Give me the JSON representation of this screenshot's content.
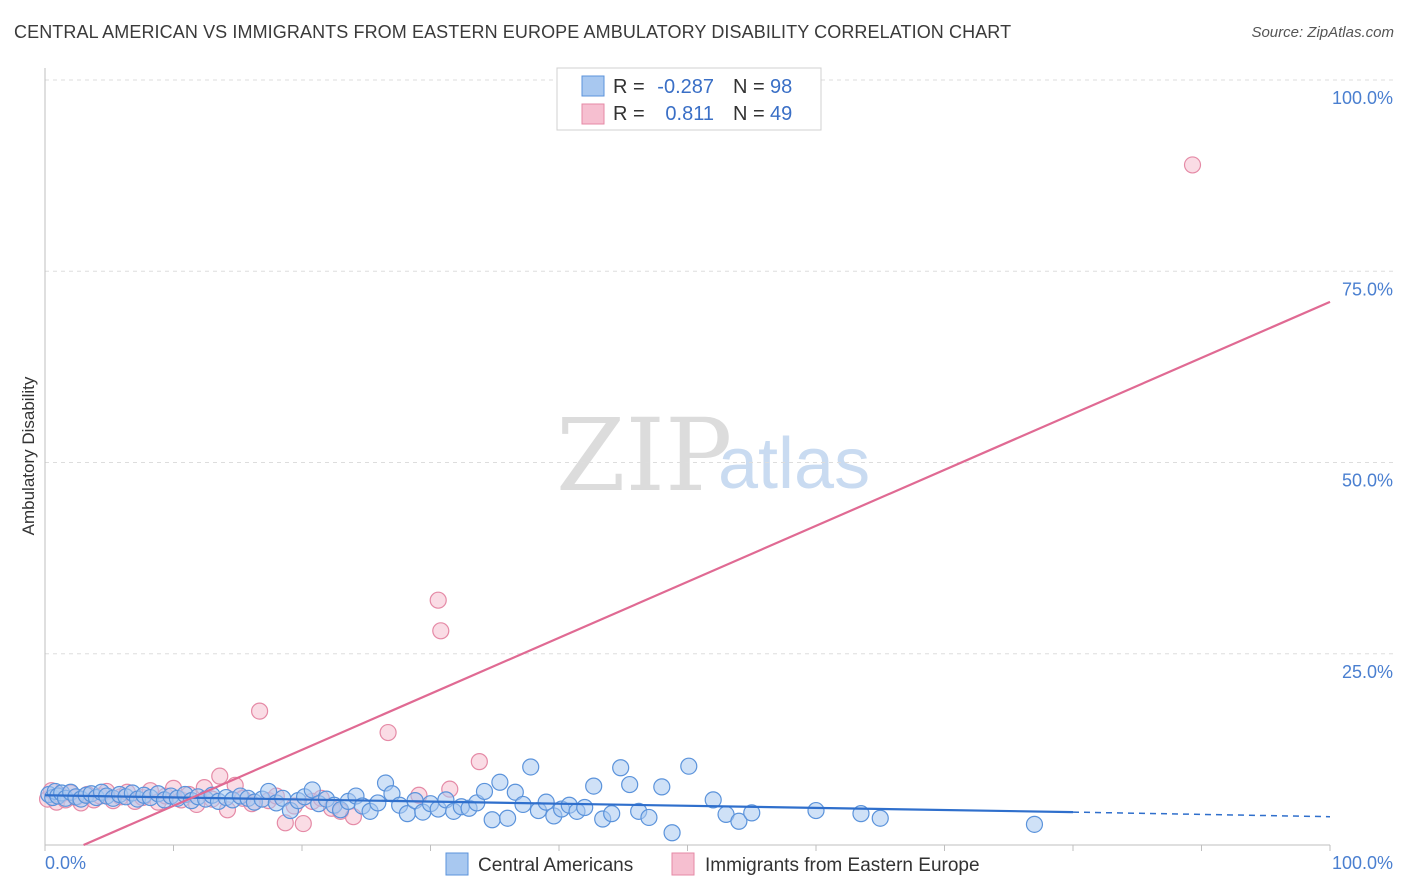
{
  "title": "CENTRAL AMERICAN VS IMMIGRANTS FROM EASTERN EUROPE AMBULATORY DISABILITY CORRELATION CHART",
  "source": "Source: ZipAtlas.com",
  "watermark": {
    "zip": "ZIP",
    "atlas": "atlas"
  },
  "colors": {
    "blue_fill": "#a8c8f0",
    "blue_stroke": "#5b93db",
    "blue_line": "#2f6fcc",
    "pink_fill": "#f6bfd0",
    "pink_stroke": "#e58aa6",
    "pink_line": "#e06a93",
    "tick": "#4a7fd0",
    "grid": "#dddddd"
  },
  "legend": {
    "rows": [
      {
        "r_label": "R =",
        "r_value": "-0.287",
        "n_label": "N =",
        "n_value": "98",
        "series": "blue"
      },
      {
        "r_label": "R =",
        "r_value": "0.811",
        "n_label": "N =",
        "n_value": "49",
        "series": "pink"
      }
    ]
  },
  "bottom_legend": [
    {
      "label": "Central Americans",
      "series": "blue"
    },
    {
      "label": "Immigrants from Eastern Europe",
      "series": "pink"
    }
  ],
  "chart_data": {
    "type": "scatter",
    "title": "CENTRAL AMERICAN VS IMMIGRANTS FROM EASTERN EUROPE AMBULATORY DISABILITY CORRELATION CHART",
    "xlabel": "",
    "ylabel": "Ambulatory Disability",
    "xlim": [
      0,
      100
    ],
    "ylim": [
      0,
      100
    ],
    "x_tick_labels": [
      "0.0%",
      "100.0%"
    ],
    "y_ticks": [
      25,
      50,
      75,
      100
    ],
    "y_tick_labels": [
      "25.0%",
      "50.0%",
      "75.0%",
      "100.0%"
    ],
    "grid": true,
    "series": [
      {
        "name": "Central Americans",
        "color": "blue",
        "trend": {
          "x0": 0,
          "y0": 6.5,
          "x1": 80,
          "y1": 4.3,
          "dash_to_x": 100,
          "dash_to_y": 3.7
        },
        "points": [
          [
            0.3,
            6.6
          ],
          [
            0.6,
            6.2
          ],
          [
            0.8,
            7.0
          ],
          [
            1.0,
            6.4
          ],
          [
            1.3,
            6.8
          ],
          [
            1.6,
            6.1
          ],
          [
            2.0,
            6.9
          ],
          [
            2.4,
            6.3
          ],
          [
            2.8,
            6.0
          ],
          [
            3.2,
            6.5
          ],
          [
            3.6,
            6.7
          ],
          [
            4.0,
            6.2
          ],
          [
            4.4,
            6.9
          ],
          [
            4.8,
            6.4
          ],
          [
            5.3,
            6.1
          ],
          [
            5.8,
            6.6
          ],
          [
            6.3,
            6.3
          ],
          [
            6.8,
            6.8
          ],
          [
            7.2,
            6.0
          ],
          [
            7.7,
            6.5
          ],
          [
            8.2,
            6.2
          ],
          [
            8.8,
            6.7
          ],
          [
            9.3,
            5.9
          ],
          [
            9.8,
            6.4
          ],
          [
            10.3,
            6.1
          ],
          [
            10.9,
            6.6
          ],
          [
            11.4,
            5.8
          ],
          [
            11.9,
            6.3
          ],
          [
            12.5,
            6.0
          ],
          [
            13.0,
            6.5
          ],
          [
            13.5,
            5.7
          ],
          [
            14.1,
            6.2
          ],
          [
            14.6,
            5.9
          ],
          [
            15.2,
            6.4
          ],
          [
            15.8,
            6.1
          ],
          [
            16.3,
            5.6
          ],
          [
            16.9,
            6.0
          ],
          [
            17.4,
            7.0
          ],
          [
            18.0,
            5.5
          ],
          [
            18.5,
            6.1
          ],
          [
            19.1,
            4.5
          ],
          [
            19.7,
            5.8
          ],
          [
            20.2,
            6.3
          ],
          [
            20.8,
            7.2
          ],
          [
            21.3,
            5.4
          ],
          [
            21.9,
            6.0
          ],
          [
            22.5,
            5.2
          ],
          [
            23.0,
            4.6
          ],
          [
            23.6,
            5.7
          ],
          [
            24.2,
            6.4
          ],
          [
            24.7,
            5.1
          ],
          [
            25.3,
            4.4
          ],
          [
            25.9,
            5.5
          ],
          [
            26.5,
            8.1
          ],
          [
            27.0,
            6.7
          ],
          [
            27.6,
            5.2
          ],
          [
            28.2,
            4.1
          ],
          [
            28.8,
            5.8
          ],
          [
            29.4,
            4.3
          ],
          [
            30.0,
            5.4
          ],
          [
            30.6,
            4.7
          ],
          [
            31.2,
            5.9
          ],
          [
            31.8,
            4.4
          ],
          [
            32.4,
            5.0
          ],
          [
            33.0,
            4.8
          ],
          [
            33.6,
            5.5
          ],
          [
            34.2,
            7.0
          ],
          [
            34.8,
            3.3
          ],
          [
            35.4,
            8.2
          ],
          [
            36.0,
            3.5
          ],
          [
            36.6,
            6.9
          ],
          [
            37.2,
            5.3
          ],
          [
            37.8,
            10.2
          ],
          [
            38.4,
            4.5
          ],
          [
            39.0,
            5.6
          ],
          [
            39.6,
            3.8
          ],
          [
            40.2,
            4.7
          ],
          [
            40.8,
            5.2
          ],
          [
            41.4,
            4.4
          ],
          [
            42.0,
            4.9
          ],
          [
            42.7,
            7.7
          ],
          [
            43.4,
            3.4
          ],
          [
            44.1,
            4.1
          ],
          [
            44.8,
            10.1
          ],
          [
            45.5,
            7.9
          ],
          [
            46.2,
            4.4
          ],
          [
            47.0,
            3.6
          ],
          [
            48.0,
            7.6
          ],
          [
            48.8,
            1.6
          ],
          [
            50.1,
            10.3
          ],
          [
            52.0,
            5.9
          ],
          [
            53.0,
            4.0
          ],
          [
            54.0,
            3.1
          ],
          [
            55.0,
            4.2
          ],
          [
            60.0,
            4.5
          ],
          [
            63.5,
            4.1
          ],
          [
            65.0,
            3.5
          ],
          [
            77.0,
            2.7
          ]
        ]
      },
      {
        "name": "Immigrants from Eastern Europe",
        "color": "pink",
        "trend": {
          "x0": 3.0,
          "y0": 0,
          "x1": 100,
          "y1": 71.0
        },
        "points": [
          [
            0.2,
            6.0
          ],
          [
            0.5,
            7.1
          ],
          [
            0.9,
            5.6
          ],
          [
            1.2,
            6.5
          ],
          [
            1.6,
            5.9
          ],
          [
            2.0,
            6.8
          ],
          [
            2.4,
            6.2
          ],
          [
            2.8,
            5.5
          ],
          [
            3.3,
            6.6
          ],
          [
            3.8,
            5.9
          ],
          [
            4.3,
            6.4
          ],
          [
            4.8,
            7.0
          ],
          [
            5.3,
            5.8
          ],
          [
            5.9,
            6.3
          ],
          [
            6.4,
            6.9
          ],
          [
            7.0,
            5.7
          ],
          [
            7.6,
            6.2
          ],
          [
            8.2,
            7.1
          ],
          [
            8.8,
            5.6
          ],
          [
            9.4,
            6.4
          ],
          [
            10.0,
            7.4
          ],
          [
            10.6,
            5.9
          ],
          [
            11.2,
            6.6
          ],
          [
            11.8,
            5.3
          ],
          [
            12.4,
            7.5
          ],
          [
            13.0,
            6.0
          ],
          [
            13.6,
            9.0
          ],
          [
            14.2,
            4.6
          ],
          [
            14.8,
            7.8
          ],
          [
            15.4,
            6.1
          ],
          [
            16.1,
            5.4
          ],
          [
            16.7,
            17.5
          ],
          [
            17.4,
            5.8
          ],
          [
            18.0,
            6.4
          ],
          [
            18.7,
            2.9
          ],
          [
            19.4,
            5.1
          ],
          [
            20.1,
            2.8
          ],
          [
            20.8,
            5.7
          ],
          [
            21.5,
            6.1
          ],
          [
            22.3,
            4.8
          ],
          [
            23.0,
            4.4
          ],
          [
            24.0,
            3.7
          ],
          [
            26.7,
            14.7
          ],
          [
            29.1,
            6.5
          ],
          [
            30.6,
            32.0
          ],
          [
            30.8,
            28.0
          ],
          [
            31.5,
            7.3
          ],
          [
            33.8,
            10.9
          ],
          [
            89.3,
            88.9
          ]
        ]
      }
    ]
  }
}
